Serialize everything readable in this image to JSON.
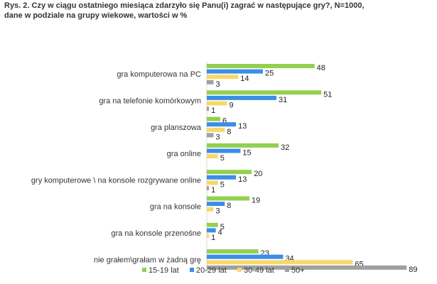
{
  "chart_data": {
    "type": "bar",
    "orientation": "horizontal",
    "title_line1": "Rys. 2. Czy w ciągu ostatniego miesiąca zdarzyło się Panu(i) zagrać w następujące gry?, N=1000,",
    "title_line2": "dane w podziale na grupy wiekowe, wartości w %",
    "categories": [
      "gra komputerowa na PC",
      "gra na telefonie komórkowym",
      "gra planszowa",
      "gra online",
      "gry komputerowe \\ na konsole rozgrywane online",
      "gra na konsole",
      "gra na konsole przenośne",
      "nie grałem\\grałam w żadną grę"
    ],
    "series": [
      {
        "name": "15-19 lat",
        "color": "#92d050",
        "values": [
          48,
          51,
          6,
          32,
          20,
          19,
          5,
          23
        ]
      },
      {
        "name": "20-29 lat",
        "color": "#3a8ee6",
        "values": [
          25,
          31,
          13,
          15,
          13,
          8,
          4,
          34
        ]
      },
      {
        "name": "30-49 lat",
        "color": "#f8d86a",
        "values": [
          14,
          9,
          8,
          5,
          5,
          3,
          1,
          65
        ]
      },
      {
        "name": "50+",
        "color": "#a0a0a0",
        "values": [
          3,
          1,
          3,
          null,
          1,
          null,
          null,
          89
        ]
      }
    ],
    "xlim": [
      0,
      100
    ],
    "legend": "bottom",
    "grid": false
  }
}
